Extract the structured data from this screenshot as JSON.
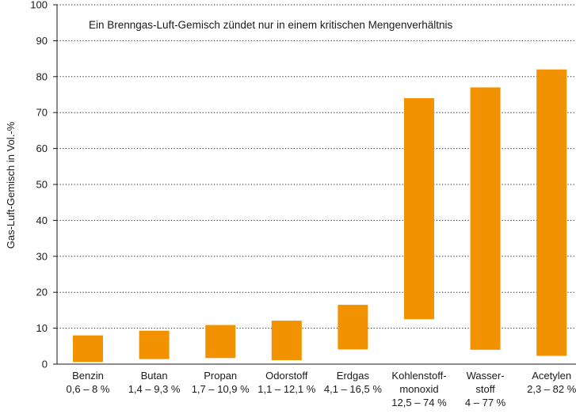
{
  "chart_data": {
    "type": "bar",
    "subtype": "floating-range",
    "title": "Ein Brenngas-Luft-Gemisch zündet nur in einem kritischen Mengenverhältnis",
    "ylabel": "Gas-Luft-Gemisch in Vol.-%",
    "ylim": [
      0,
      100
    ],
    "yticks": [
      0,
      10,
      20,
      30,
      40,
      50,
      60,
      70,
      80,
      90,
      100
    ],
    "grid": "horizontal-dotted",
    "bar_color": "#f39200",
    "categories": [
      {
        "label": [
          "Benzin",
          "0,6 – 8 %"
        ],
        "low": 0.6,
        "high": 8
      },
      {
        "label": [
          "Butan",
          "1,4 – 9,3 %"
        ],
        "low": 1.4,
        "high": 9.3
      },
      {
        "label": [
          "Propan",
          "1,7 – 10,9 %"
        ],
        "low": 1.7,
        "high": 10.9
      },
      {
        "label": [
          "Odorstoff",
          "1,1 – 12,1 %"
        ],
        "low": 1.1,
        "high": 12.1
      },
      {
        "label": [
          "Erdgas",
          "4,1 – 16,5 %"
        ],
        "low": 4.1,
        "high": 16.5
      },
      {
        "label": [
          "Kohlenstoff-",
          "monoxid",
          "12,5 – 74 %"
        ],
        "low": 12.5,
        "high": 74
      },
      {
        "label": [
          "Wasser-",
          "stoff",
          "4 – 77 %"
        ],
        "low": 4,
        "high": 77
      },
      {
        "label": [
          "Acetylen",
          "2,3 – 82 %"
        ],
        "low": 2.3,
        "high": 82
      }
    ]
  }
}
